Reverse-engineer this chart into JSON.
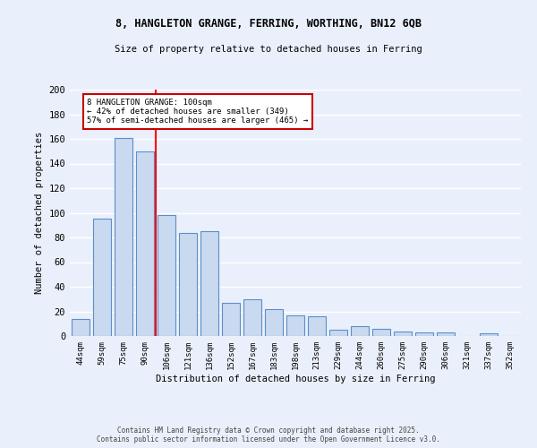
{
  "title1": "8, HANGLETON GRANGE, FERRING, WORTHING, BN12 6QB",
  "title2": "Size of property relative to detached houses in Ferring",
  "xlabel": "Distribution of detached houses by size in Ferring",
  "ylabel": "Number of detached properties",
  "categories": [
    "44sqm",
    "59sqm",
    "75sqm",
    "90sqm",
    "106sqm",
    "121sqm",
    "136sqm",
    "152sqm",
    "167sqm",
    "183sqm",
    "198sqm",
    "213sqm",
    "229sqm",
    "244sqm",
    "260sqm",
    "275sqm",
    "290sqm",
    "306sqm",
    "321sqm",
    "337sqm",
    "352sqm"
  ],
  "values": [
    14,
    95,
    161,
    150,
    98,
    84,
    85,
    27,
    30,
    22,
    17,
    16,
    5,
    8,
    6,
    4,
    3,
    3,
    0,
    2,
    0
  ],
  "bar_color": "#c9d9f0",
  "bar_edge_color": "#5b8fc9",
  "background_color": "#eaf0fb",
  "grid_color": "#ffffff",
  "red_line_x": 3.5,
  "annotation_text": "8 HANGLETON GRANGE: 100sqm\n← 42% of detached houses are smaller (349)\n57% of semi-detached houses are larger (465) →",
  "annotation_box_color": "#ffffff",
  "annotation_box_edge": "#cc0000",
  "ylim": [
    0,
    200
  ],
  "yticks": [
    0,
    20,
    40,
    60,
    80,
    100,
    120,
    140,
    160,
    180,
    200
  ],
  "footer": "Contains HM Land Registry data © Crown copyright and database right 2025.\nContains public sector information licensed under the Open Government Licence v3.0."
}
